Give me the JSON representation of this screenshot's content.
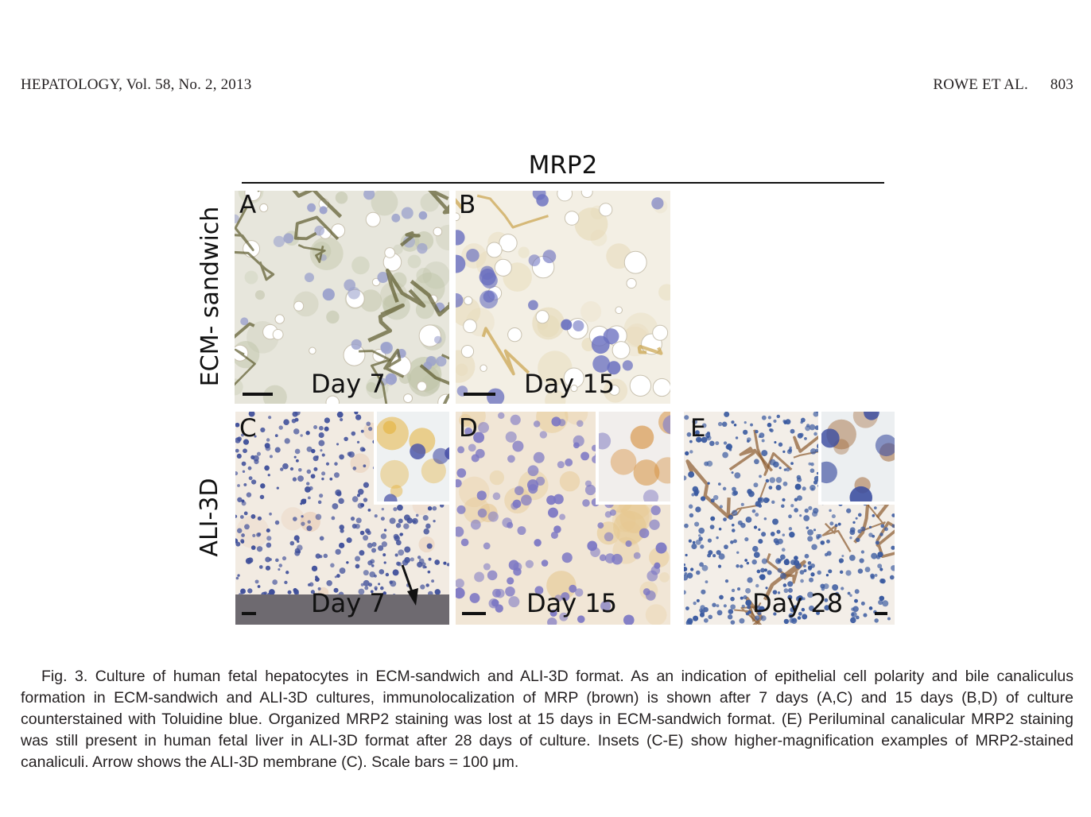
{
  "header": {
    "journal": "HEPATOLOGY, Vol. 58, No. 2, 2013",
    "authors": "ROWE ET AL.",
    "page": "803"
  },
  "figure": {
    "title": "MRP2",
    "rows": [
      {
        "label": "ECM- sandwich"
      },
      {
        "label": "ALI-3D"
      }
    ],
    "panels": [
      {
        "letter": "A",
        "day": "Day 7"
      },
      {
        "letter": "B",
        "day": "Day 15"
      },
      {
        "letter": "C",
        "day": "Day 7"
      },
      {
        "letter": "D",
        "day": "Day 15"
      },
      {
        "letter": "E",
        "day": "Day 28"
      }
    ],
    "colors": {
      "toluidine_blue": "#5b63b5",
      "mrp2_brown": "#8a6a2a",
      "membrane_gray": "#6e6a70",
      "background": "#f4ecdf"
    }
  },
  "caption": "Fig. 3. Culture of human fetal hepatocytes in ECM-sandwich and ALI-3D format. As an indication of epithelial cell polarity and bile canaliculus formation in ECM-sandwich and ALI-3D cultures, immunolocalization of MRP (brown) is shown after 7 days (A,C) and 15 days (B,D) of culture counterstained with Toluidine blue. Organized MRP2 staining was lost at 15 days in ECM-sandwich format. (E) Periluminal canalicular MRP2 staining was still present in human fetal liver in ALI-3D format after 28 days of culture. Insets (C-E) show higher-magnification examples of MRP2-stained canaliculi. Arrow shows the ALI-3D membrane (C). Scale bars = 100 μm."
}
